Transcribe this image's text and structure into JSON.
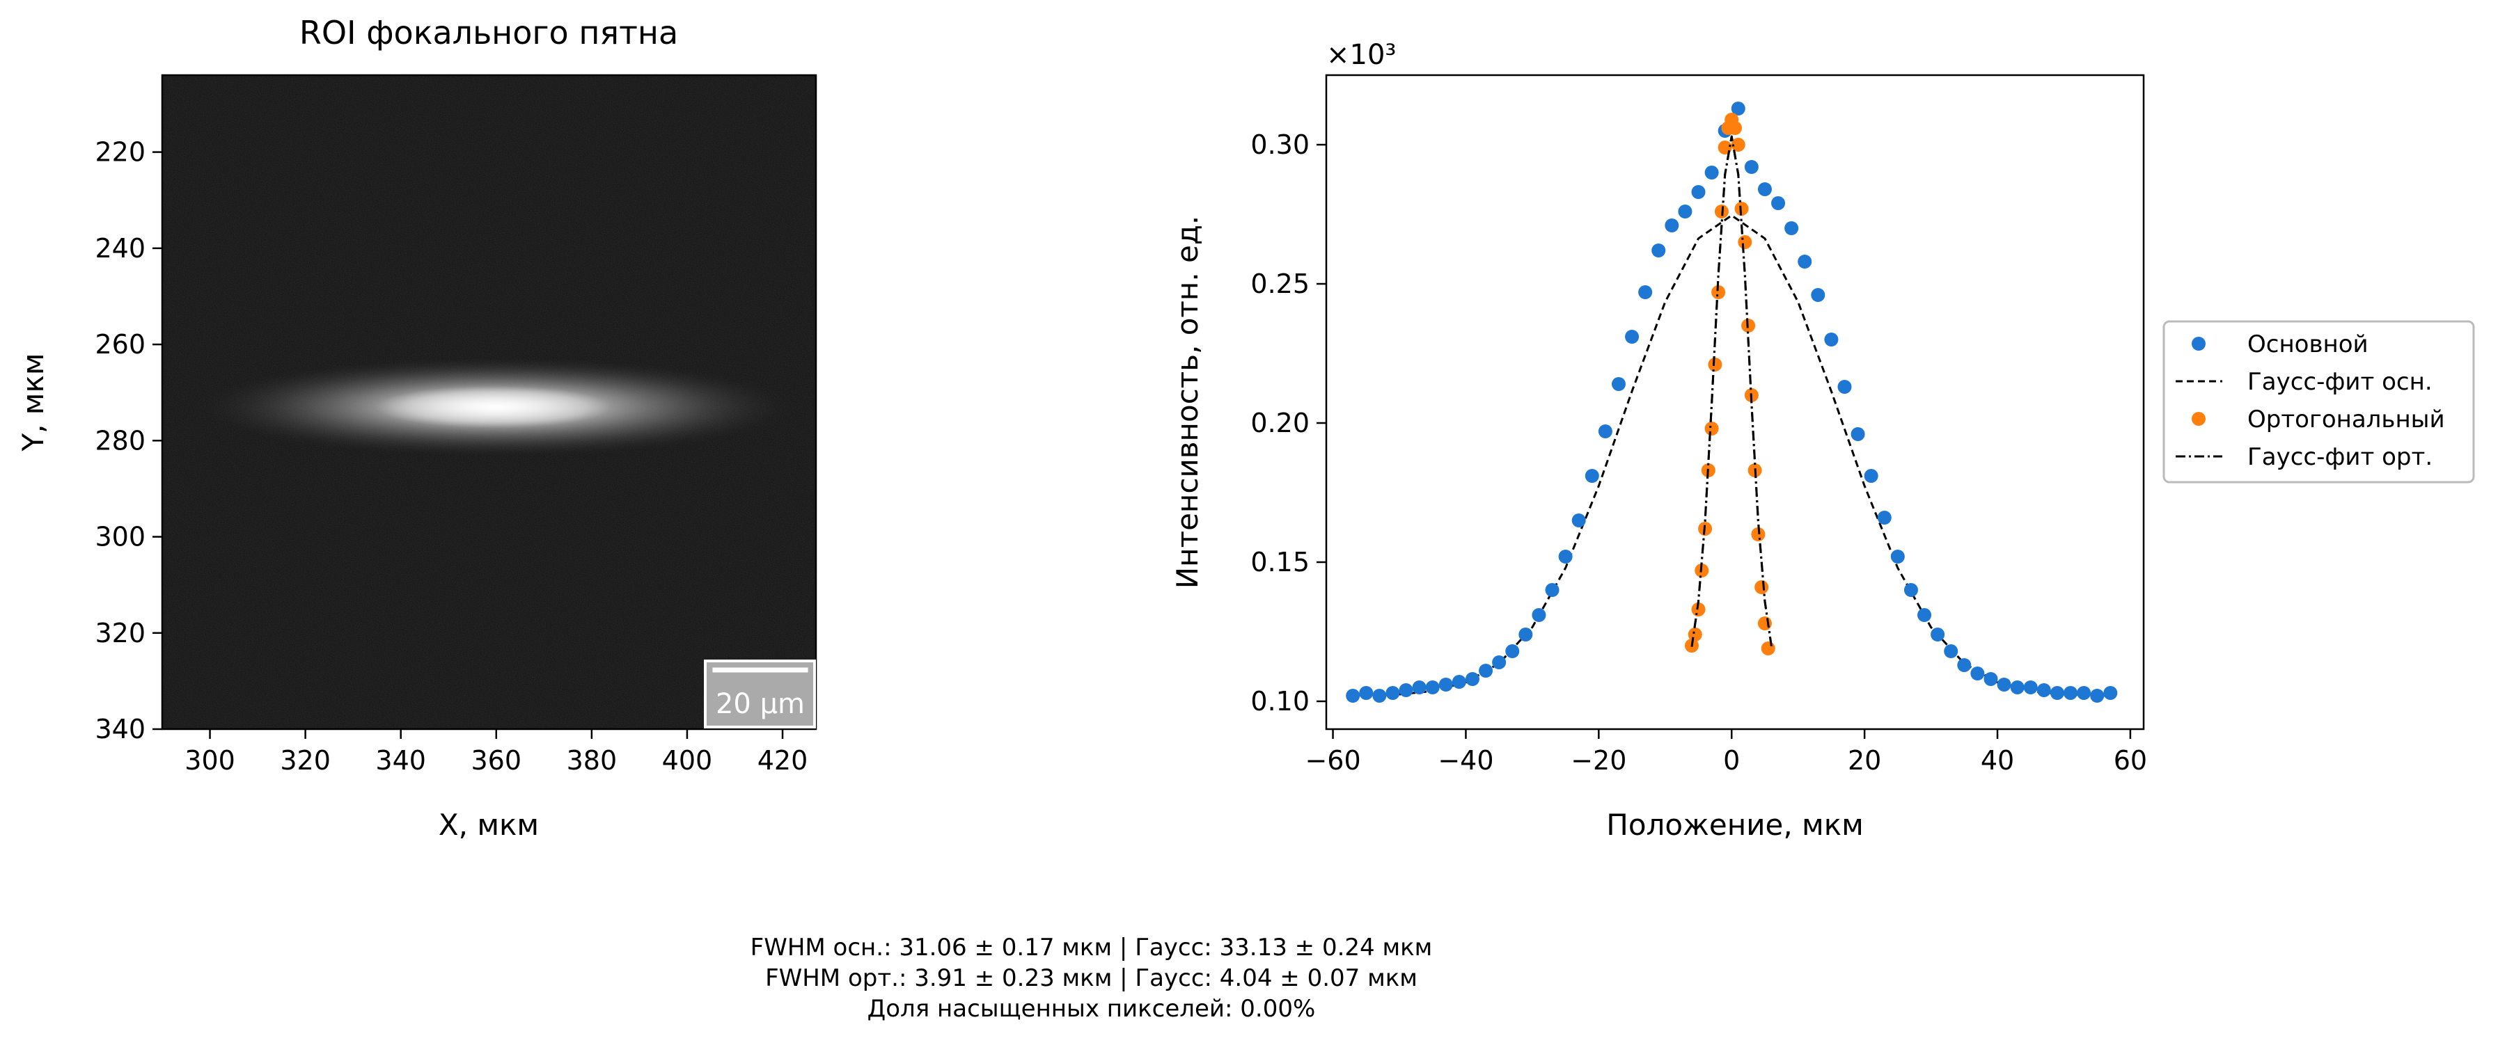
{
  "chart_data": [
    {
      "type": "heatmap",
      "title": "ROI фокального пятна",
      "xlabel": "X, мкм",
      "ylabel": "Y, мкм",
      "xlim": [
        290,
        427
      ],
      "ylim": [
        340,
        204
      ],
      "xticks": [
        300,
        320,
        340,
        360,
        380,
        400,
        420
      ],
      "yticks": [
        220,
        240,
        260,
        280,
        300,
        320,
        340
      ],
      "grid": false,
      "colormap": "gray",
      "spot": {
        "center_x": 360,
        "center_y": 273,
        "fwhm_x": 33,
        "fwhm_y": 4
      },
      "scale_bar": {
        "label": "20 µm",
        "length": 20,
        "position": "bottom-right"
      }
    },
    {
      "type": "scatter",
      "title": "",
      "xlabel": "Положение, мкм",
      "ylabel": "Интенсивность, отн. ед.",
      "y_multiplier": "×10³",
      "xlim": [
        -61,
        62
      ],
      "ylim": [
        0.09,
        0.325
      ],
      "xticks": [
        -60,
        -40,
        -20,
        0,
        20,
        40,
        60
      ],
      "yticks": [
        0.1,
        0.15,
        0.2,
        0.25,
        0.3
      ],
      "grid": false,
      "legend_position": "outside-right",
      "series": [
        {
          "name": "Основной",
          "kind": "scatter",
          "color": "#1f77d4",
          "x": [
            -57,
            -55,
            -53,
            -51,
            -49,
            -47,
            -45,
            -43,
            -41,
            -39,
            -37,
            -35,
            -33,
            -31,
            -29,
            -27,
            -25,
            -23,
            -21,
            -19,
            -17,
            -15,
            -13,
            -11,
            -9,
            -7,
            -5,
            -3,
            -1,
            1,
            3,
            5,
            7,
            9,
            11,
            13,
            15,
            17,
            19,
            21,
            23,
            25,
            27,
            29,
            31,
            33,
            35,
            37,
            39,
            41,
            43,
            45,
            47,
            49,
            51,
            53,
            55,
            57
          ],
          "y": [
            0.102,
            0.103,
            0.102,
            0.103,
            0.104,
            0.105,
            0.105,
            0.106,
            0.107,
            0.108,
            0.111,
            0.114,
            0.118,
            0.124,
            0.131,
            0.14,
            0.152,
            0.165,
            0.181,
            0.197,
            0.214,
            0.231,
            0.247,
            0.262,
            0.271,
            0.276,
            0.283,
            0.29,
            0.305,
            0.313,
            0.292,
            0.284,
            0.279,
            0.27,
            0.258,
            0.246,
            0.23,
            0.213,
            0.196,
            0.181,
            0.166,
            0.152,
            0.14,
            0.131,
            0.124,
            0.118,
            0.113,
            0.11,
            0.108,
            0.106,
            0.105,
            0.105,
            0.104,
            0.103,
            0.103,
            0.103,
            0.102,
            0.103
          ]
        },
        {
          "name": "Гаусс-фит осн.",
          "kind": "line",
          "style": "dashed",
          "color": "#000000",
          "x": [
            -57,
            -50,
            -45,
            -40,
            -35,
            -30,
            -25,
            -20,
            -15,
            -10,
            -5,
            0,
            5,
            10,
            15,
            20,
            25,
            30,
            35,
            40,
            45,
            50,
            57
          ],
          "y": [
            0.102,
            0.1025,
            0.1037,
            0.1068,
            0.1136,
            0.1266,
            0.1479,
            0.1774,
            0.2114,
            0.2435,
            0.2663,
            0.2746,
            0.2663,
            0.2435,
            0.2114,
            0.1774,
            0.1479,
            0.1266,
            0.1136,
            0.1068,
            0.1037,
            0.1025,
            0.102
          ]
        },
        {
          "name": "Ортогональный",
          "kind": "scatter",
          "color": "#ff7f0e",
          "x": [
            -6,
            -5.5,
            -5,
            -4.5,
            -4,
            -3.5,
            -3,
            -2.5,
            -2,
            -1.5,
            -1,
            -0.5,
            0,
            0.5,
            1,
            1.5,
            2,
            2.5,
            3,
            3.5,
            4,
            4.5,
            5,
            5.5
          ],
          "y": [
            0.12,
            0.124,
            0.133,
            0.147,
            0.162,
            0.183,
            0.198,
            0.221,
            0.247,
            0.276,
            0.299,
            0.306,
            0.309,
            0.306,
            0.3,
            0.277,
            0.265,
            0.235,
            0.21,
            0.183,
            0.16,
            0.141,
            0.128,
            0.119
          ]
        },
        {
          "name": "Гаусс-фит орт.",
          "kind": "line",
          "style": "dashdot",
          "color": "#000000",
          "x": [
            -6,
            -5,
            -4,
            -3,
            -2,
            -1,
            0,
            1,
            2,
            3,
            4,
            5,
            6
          ],
          "y": [
            0.1196,
            0.1359,
            0.1646,
            0.2068,
            0.2531,
            0.2893,
            0.303,
            0.2893,
            0.2531,
            0.2068,
            0.1646,
            0.1359,
            0.1196
          ]
        }
      ]
    }
  ],
  "stats": {
    "line1": "FWHM осн.: 31.06 ± 0.17 мкм | Гаусс: 33.13 ± 0.24 мкм",
    "line2": "FWHM орт.: 3.91 ± 0.23 мкм | Гаусс: 4.04 ± 0.07 мкм",
    "line3": "Доля насыщенных пикселей: 0.00%"
  }
}
